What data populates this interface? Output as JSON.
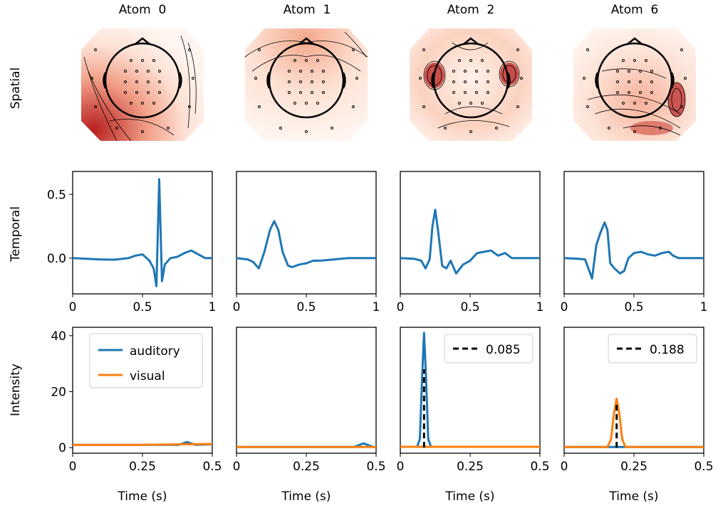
{
  "row_labels": {
    "spatial": "Spatial",
    "temporal": "Temporal",
    "intensity": "Intensity"
  },
  "xlabel": "Time (s)",
  "atoms": [
    {
      "title": "Atom  0"
    },
    {
      "title": "Atom  1"
    },
    {
      "title": "Atom  2"
    },
    {
      "title": "Atom  6"
    }
  ],
  "colors": {
    "auditory": "#1f77b4",
    "visual": "#ff7f0e",
    "threshold": "#000000"
  },
  "chart_data": [
    {
      "type": "line",
      "row": "temporal",
      "ylabel": "Temporal",
      "xlim": [
        0,
        1
      ],
      "ylim": [
        -0.28,
        0.68
      ],
      "xticks": [
        0,
        0.5,
        1
      ],
      "xtick_labels": [
        "0",
        "0.5",
        "1"
      ],
      "yticks": [
        0.0,
        0.5
      ],
      "ytick_labels": [
        "0.0",
        "0.5"
      ],
      "series": [
        {
          "atom": "Atom  0",
          "x": [
            0,
            0.1,
            0.2,
            0.3,
            0.4,
            0.45,
            0.5,
            0.55,
            0.58,
            0.6,
            0.62,
            0.64,
            0.66,
            0.7,
            0.75,
            0.8,
            0.85,
            0.9,
            0.95,
            1.0
          ],
          "y": [
            0,
            -0.005,
            -0.01,
            -0.012,
            0.0,
            0.02,
            0.03,
            -0.02,
            -0.08,
            -0.22,
            0.62,
            -0.18,
            -0.05,
            0.0,
            0.01,
            0.04,
            0.06,
            0.03,
            0.0,
            0.0
          ]
        },
        {
          "atom": "Atom  1",
          "x": [
            0,
            0.08,
            0.12,
            0.16,
            0.2,
            0.24,
            0.27,
            0.3,
            0.33,
            0.37,
            0.4,
            0.45,
            0.5,
            0.55,
            0.6,
            0.7,
            0.8,
            0.9,
            1.0
          ],
          "y": [
            0,
            -0.01,
            -0.03,
            -0.08,
            0.05,
            0.22,
            0.29,
            0.22,
            0.05,
            -0.06,
            -0.07,
            -0.05,
            -0.04,
            -0.02,
            -0.02,
            -0.01,
            0.0,
            0.0,
            0.0
          ]
        },
        {
          "atom": "Atom  2",
          "x": [
            0,
            0.1,
            0.15,
            0.18,
            0.21,
            0.23,
            0.25,
            0.27,
            0.3,
            0.33,
            0.36,
            0.4,
            0.45,
            0.5,
            0.55,
            0.6,
            0.65,
            0.7,
            0.75,
            0.8,
            0.9,
            1.0
          ],
          "y": [
            0,
            -0.005,
            -0.02,
            -0.08,
            -0.01,
            0.25,
            0.38,
            0.22,
            -0.06,
            -0.08,
            -0.02,
            -0.12,
            -0.05,
            -0.02,
            0.04,
            0.05,
            0.06,
            0.02,
            0.04,
            0.0,
            0.0,
            0.0
          ]
        },
        {
          "atom": "Atom  6",
          "x": [
            0,
            0.1,
            0.15,
            0.18,
            0.2,
            0.23,
            0.26,
            0.29,
            0.31,
            0.33,
            0.36,
            0.4,
            0.43,
            0.46,
            0.5,
            0.55,
            0.6,
            0.65,
            0.7,
            0.75,
            0.78,
            0.82,
            0.9,
            1.0
          ],
          "y": [
            0,
            -0.005,
            -0.01,
            -0.1,
            -0.16,
            0.1,
            0.2,
            0.28,
            0.22,
            -0.04,
            -0.08,
            -0.12,
            -0.1,
            0.0,
            0.04,
            0.05,
            0.03,
            0.02,
            0.04,
            0.05,
            0.02,
            0.0,
            0.0,
            0.0
          ]
        }
      ]
    },
    {
      "type": "line",
      "row": "intensity",
      "ylabel": "Intensity",
      "xlim": [
        0,
        0.5
      ],
      "ylim": [
        -2,
        43
      ],
      "xticks": [
        0,
        0.25,
        0.5
      ],
      "xtick_labels": [
        "0",
        "0.25",
        "0.5"
      ],
      "yticks": [
        0,
        20,
        40
      ],
      "ytick_labels": [
        "0",
        "20",
        "40"
      ],
      "legend": {
        "position": "upper-left",
        "entries": [
          "auditory",
          "visual"
        ]
      },
      "series": [
        {
          "atom": "Atom  0",
          "name": "auditory",
          "x": [
            0,
            0.38,
            0.41,
            0.44,
            0.5
          ],
          "y": [
            1,
            1,
            2,
            1,
            1.2
          ]
        },
        {
          "atom": "Atom  0",
          "name": "visual",
          "x": [
            0,
            0.25,
            0.5
          ],
          "y": [
            1,
            1,
            1.3
          ]
        },
        {
          "atom": "Atom  1",
          "name": "auditory",
          "x": [
            0,
            0.42,
            0.455,
            0.49,
            0.5
          ],
          "y": [
            0.2,
            0.2,
            1.5,
            0.2,
            0.2
          ]
        },
        {
          "atom": "Atom  1",
          "name": "visual",
          "x": [
            0,
            0.5
          ],
          "y": [
            0.2,
            0.2
          ]
        },
        {
          "atom": "Atom  2",
          "name": "auditory",
          "x": [
            0,
            0.06,
            0.07,
            0.078,
            0.085,
            0.092,
            0.1,
            0.11,
            0.5
          ],
          "y": [
            0.3,
            0.3,
            3,
            25,
            41,
            25,
            3,
            0.3,
            0.3
          ]
        },
        {
          "atom": "Atom  2",
          "name": "visual",
          "x": [
            0,
            0.5
          ],
          "y": [
            0.3,
            0.3
          ]
        },
        {
          "atom": "Atom  6",
          "name": "auditory",
          "x": [
            0,
            0.5
          ],
          "y": [
            0.2,
            0.2
          ]
        },
        {
          "atom": "Atom  6",
          "name": "visual",
          "x": [
            0,
            0.155,
            0.168,
            0.178,
            0.188,
            0.198,
            0.208,
            0.22,
            0.5
          ],
          "y": [
            0.2,
            0.2,
            3,
            12,
            17.5,
            12,
            3,
            0.2,
            0.2
          ]
        }
      ],
      "thresholds": [
        {
          "atom": "Atom  2",
          "label": "0.085",
          "x": 0.085,
          "y_max": 28
        },
        {
          "atom": "Atom  6",
          "label": "0.188",
          "x": 0.188,
          "y_max": 16
        }
      ]
    }
  ]
}
